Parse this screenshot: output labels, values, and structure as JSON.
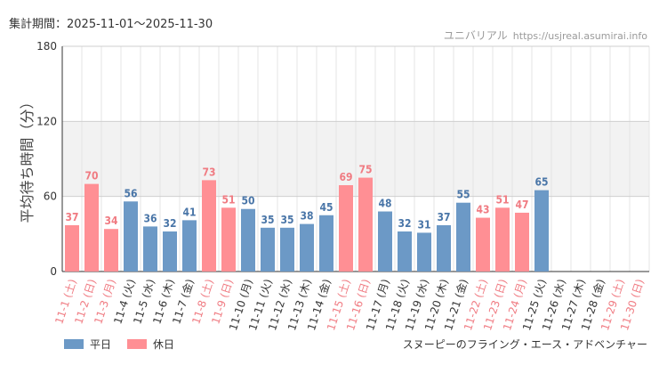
{
  "header": {
    "period": "集計期間：2025-11-01～2025-11-30",
    "site_name": "ユニバリアル",
    "site_url": "https://usjreal.asumirai.info"
  },
  "legend": {
    "weekday": "平日",
    "holiday": "休日",
    "attraction": "スヌーピーのフライング・エース・アドベンチャー"
  },
  "chart_data": {
    "type": "bar",
    "ylabel": "平均待ち時間（分）",
    "ylim": [
      0,
      180
    ],
    "yticks": [
      0,
      60,
      120,
      180
    ],
    "categories": [
      "11-1 (土)",
      "11-2 (日)",
      "11-3 (月)",
      "11-4 (火)",
      "11-5 (水)",
      "11-6 (木)",
      "11-7 (金)",
      "11-8 (土)",
      "11-9 (日)",
      "11-10 (月)",
      "11-11 (火)",
      "11-12 (水)",
      "11-13 (木)",
      "11-14 (金)",
      "11-15 (土)",
      "11-16 (日)",
      "11-17 (月)",
      "11-18 (火)",
      "11-19 (水)",
      "11-20 (木)",
      "11-21 (金)",
      "11-22 (土)",
      "11-23 (日)",
      "11-24 (月)",
      "11-25 (火)",
      "11-26 (水)",
      "11-27 (木)",
      "11-28 (金)",
      "11-29 (土)",
      "11-30 (日)"
    ],
    "values": [
      37,
      70,
      34,
      56,
      36,
      32,
      41,
      73,
      51,
      50,
      35,
      35,
      38,
      45,
      69,
      75,
      48,
      32,
      31,
      37,
      55,
      43,
      51,
      47,
      65,
      null,
      null,
      null,
      null,
      null
    ],
    "day_type": [
      "holiday",
      "holiday",
      "holiday",
      "weekday",
      "weekday",
      "weekday",
      "weekday",
      "holiday",
      "holiday",
      "weekday",
      "weekday",
      "weekday",
      "weekday",
      "weekday",
      "holiday",
      "holiday",
      "weekday",
      "weekday",
      "weekday",
      "weekday",
      "weekday",
      "holiday",
      "holiday",
      "holiday",
      "weekday",
      "weekday",
      "weekday",
      "weekday",
      "holiday",
      "holiday"
    ],
    "shaded_band": [
      60,
      120
    ],
    "colors": {
      "weekday": "#6c99c6",
      "holiday": "#ff8f94",
      "weekday_label": "#4a76a8",
      "holiday_label": "#f07b82",
      "band": "#f2f2f2",
      "grid": "#e4e4e4"
    }
  }
}
